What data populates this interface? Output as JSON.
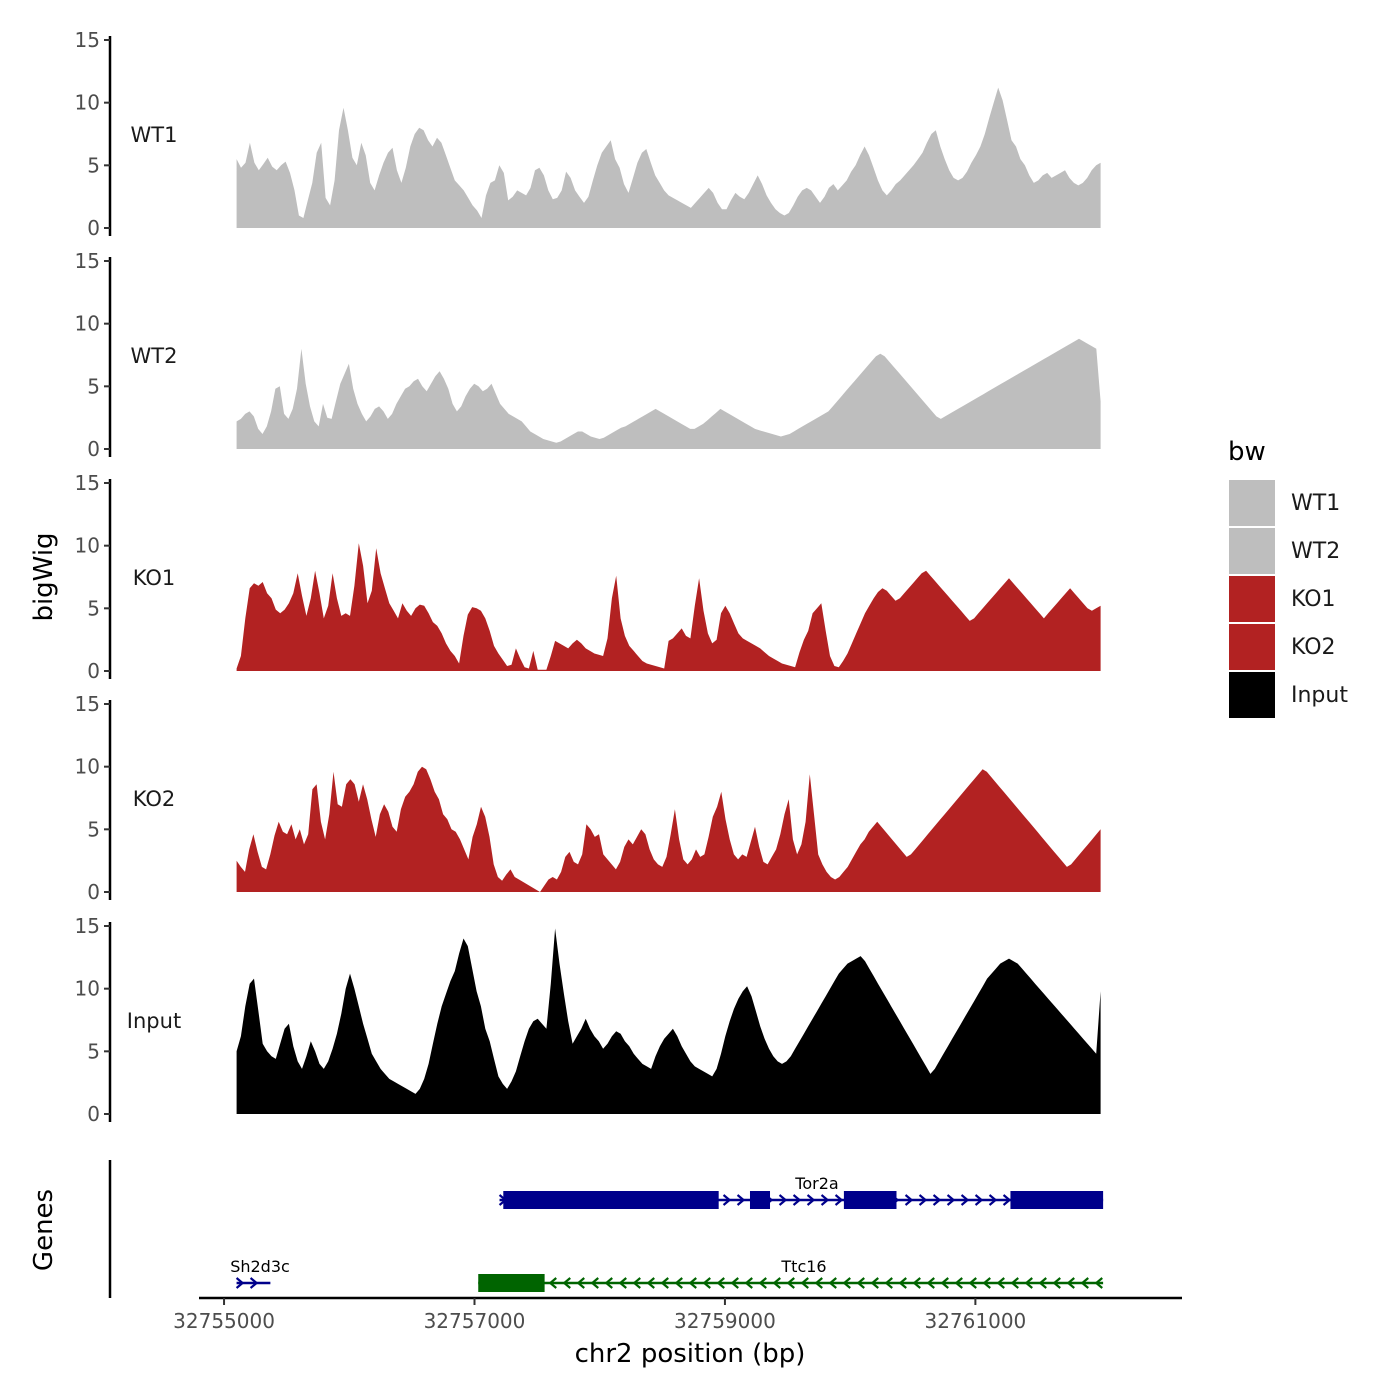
{
  "chart_data": {
    "type": "area",
    "ylabel": "bigWig",
    "gene_panel_label": "Genes",
    "xlabel": "chr2 position (bp)",
    "xlim": [
      32754800,
      32762650
    ],
    "x_ticks": [
      32755000,
      32757000,
      32759000,
      32761000
    ],
    "x_tick_labels": [
      "32755000",
      "32757000",
      "32759000",
      "32761000"
    ],
    "ylim": [
      0,
      15
    ],
    "y_ticks": [
      0,
      5,
      10,
      15
    ],
    "y_tick_labels": [
      "0",
      "5",
      "10",
      "15"
    ],
    "data_range": [
      32755100,
      32762000
    ],
    "legend": {
      "title": "bw",
      "entries": [
        {
          "label": "WT1",
          "color": "#bebebe"
        },
        {
          "label": "WT2",
          "color": "#bebebe"
        },
        {
          "label": "KO1",
          "color": "#b22222"
        },
        {
          "label": "KO2",
          "color": "#b22222"
        },
        {
          "label": "Input",
          "color": "#000000"
        }
      ]
    },
    "series": [
      {
        "name": "WT1",
        "color": "#bebebe",
        "values": [
          5.5,
          4.8,
          5.2,
          6.8,
          5.2,
          4.6,
          5.1,
          5.6,
          4.9,
          4.6,
          5.0,
          5.3,
          4.4,
          3.0,
          1.0,
          0.8,
          2.2,
          3.6,
          6.0,
          6.8,
          2.4,
          1.8,
          3.8,
          7.8,
          9.6,
          7.8,
          5.6,
          5.0,
          6.8,
          5.8,
          3.6,
          3.0,
          4.2,
          5.2,
          6.0,
          6.4,
          4.6,
          3.6,
          4.8,
          6.5,
          7.5,
          8.0,
          7.8,
          7.0,
          6.5,
          7.2,
          6.8,
          5.8,
          4.8,
          3.8,
          3.4,
          3.0,
          2.4,
          1.8,
          1.4,
          0.8,
          2.6,
          3.6,
          3.8,
          5.0,
          4.4,
          2.2,
          2.5,
          3.0,
          2.8,
          2.6,
          3.2,
          4.6,
          4.8,
          4.2,
          3.0,
          2.3,
          2.4,
          3.0,
          4.5,
          4.0,
          3.0,
          2.5,
          2.0,
          2.5,
          3.8,
          5.0,
          6.0,
          6.5,
          7.0,
          5.5,
          4.8,
          3.5,
          2.8,
          4.0,
          5.2,
          6.0,
          6.3,
          5.2,
          4.2,
          3.6,
          3.0,
          2.6,
          2.4,
          2.2,
          2.0,
          1.8,
          1.6,
          2.0,
          2.4,
          2.8,
          3.2,
          2.8,
          2.0,
          1.5,
          1.5,
          2.2,
          2.8,
          2.5,
          2.3,
          2.8,
          3.5,
          4.2,
          3.5,
          2.6,
          2.0,
          1.5,
          1.2,
          1.0,
          1.2,
          1.8,
          2.5,
          3.0,
          3.2,
          3.0,
          2.5,
          2.0,
          2.5,
          3.2,
          3.5,
          3.0,
          3.4,
          3.8,
          4.5,
          5.0,
          5.8,
          6.5,
          5.8,
          4.8,
          3.8,
          3.0,
          2.6,
          3.0,
          3.5,
          3.8,
          4.2,
          4.6,
          5.0,
          5.5,
          6.0,
          6.8,
          7.5,
          7.8,
          6.5,
          5.5,
          4.6,
          4.0,
          3.8,
          4.0,
          4.5,
          5.2,
          5.8,
          6.5,
          7.5,
          8.8,
          10.0,
          11.2,
          10.2,
          8.6,
          7.0,
          6.5,
          5.5,
          5.0,
          4.2,
          3.6,
          3.8,
          4.2,
          4.4,
          4.0,
          4.2,
          4.4,
          4.6,
          4.0,
          3.6,
          3.4,
          3.6,
          4.0,
          4.6,
          5.0,
          5.2
        ]
      },
      {
        "name": "WT2",
        "color": "#bebebe",
        "values": [
          2.2,
          2.4,
          2.8,
          3.0,
          2.6,
          1.6,
          1.2,
          1.8,
          3.0,
          4.8,
          5.0,
          2.8,
          2.4,
          3.2,
          4.8,
          8.0,
          5.2,
          3.4,
          2.2,
          1.8,
          3.6,
          2.5,
          2.4,
          3.8,
          5.2,
          6.0,
          6.8,
          4.8,
          3.6,
          2.8,
          2.2,
          2.6,
          3.2,
          3.4,
          3.0,
          2.4,
          2.8,
          3.6,
          4.2,
          4.8,
          5.0,
          5.4,
          5.6,
          5.0,
          4.6,
          5.2,
          5.8,
          6.2,
          5.6,
          4.8,
          3.6,
          3.0,
          3.4,
          4.2,
          4.8,
          5.2,
          5.0,
          4.6,
          4.8,
          5.2,
          4.4,
          3.6,
          3.2,
          2.8,
          2.6,
          2.4,
          2.2,
          1.8,
          1.4,
          1.2,
          1.0,
          0.8,
          0.7,
          0.6,
          0.5,
          0.6,
          0.8,
          1.0,
          1.2,
          1.4,
          1.4,
          1.2,
          1.0,
          0.9,
          0.8,
          0.9,
          1.1,
          1.3,
          1.5,
          1.7,
          1.8,
          2.0,
          2.2,
          2.4,
          2.6,
          2.8,
          3.0,
          3.2,
          3.0,
          2.8,
          2.6,
          2.4,
          2.2,
          2.0,
          1.8,
          1.6,
          1.6,
          1.8,
          2.0,
          2.3,
          2.6,
          2.9,
          3.2,
          3.0,
          2.8,
          2.6,
          2.4,
          2.2,
          2.0,
          1.8,
          1.6,
          1.5,
          1.4,
          1.3,
          1.2,
          1.1,
          1.0,
          1.1,
          1.2,
          1.4,
          1.6,
          1.8,
          2.0,
          2.2,
          2.4,
          2.6,
          2.8,
          3.0,
          3.4,
          3.8,
          4.2,
          4.6,
          5.0,
          5.4,
          5.8,
          6.2,
          6.6,
          7.0,
          7.4,
          7.6,
          7.4,
          7.0,
          6.6,
          6.2,
          5.8,
          5.4,
          5.0,
          4.6,
          4.2,
          3.8,
          3.4,
          3.0,
          2.6,
          2.4,
          2.6,
          2.8,
          3.0,
          3.2,
          3.4,
          3.6,
          3.8,
          4.0,
          4.2,
          4.4,
          4.6,
          4.8,
          5.0,
          5.2,
          5.4,
          5.6,
          5.8,
          6.0,
          6.2,
          6.4,
          6.6,
          6.8,
          7.0,
          7.2,
          7.4,
          7.6,
          7.8,
          8.0,
          8.2,
          8.4,
          8.6,
          8.8,
          8.6,
          8.4,
          8.2,
          8.0,
          3.8
        ]
      },
      {
        "name": "KO1",
        "color": "#b22222",
        "values": [
          0.2,
          1.2,
          4.2,
          6.6,
          7.0,
          6.8,
          7.1,
          6.2,
          5.8,
          4.9,
          4.6,
          4.9,
          5.4,
          6.2,
          7.8,
          6.0,
          4.4,
          5.8,
          8.0,
          6.2,
          4.2,
          5.2,
          7.8,
          5.8,
          4.4,
          4.6,
          4.4,
          6.8,
          10.2,
          8.4,
          5.4,
          6.4,
          9.8,
          7.8,
          6.6,
          5.4,
          4.8,
          4.2,
          5.4,
          4.8,
          4.4,
          5.0,
          5.3,
          5.2,
          4.6,
          3.9,
          3.6,
          3.0,
          2.2,
          1.6,
          1.2,
          0.6,
          2.8,
          4.5,
          5.1,
          5.0,
          4.8,
          4.2,
          3.2,
          2.0,
          1.4,
          0.9,
          0.4,
          0.5,
          1.8,
          1.0,
          0.3,
          0.2,
          1.6,
          0.1,
          0.1,
          0.1,
          1.2,
          2.4,
          2.2,
          2.0,
          1.8,
          2.2,
          2.5,
          2.2,
          1.8,
          1.6,
          1.4,
          1.3,
          1.2,
          2.6,
          5.8,
          7.6,
          4.2,
          2.8,
          2.0,
          1.6,
          1.2,
          0.8,
          0.6,
          0.5,
          0.4,
          0.3,
          0.2,
          2.4,
          2.6,
          3.0,
          3.4,
          2.8,
          2.6,
          5.2,
          7.4,
          4.8,
          3.0,
          2.2,
          2.5,
          4.6,
          5.2,
          4.6,
          3.8,
          3.0,
          2.6,
          2.4,
          2.2,
          2.0,
          1.8,
          1.5,
          1.2,
          1.0,
          0.8,
          0.6,
          0.5,
          0.4,
          0.3,
          1.5,
          2.5,
          3.2,
          4.6,
          5.0,
          5.4,
          3.2,
          1.2,
          0.4,
          0.3,
          0.8,
          1.4,
          2.2,
          3.0,
          3.8,
          4.6,
          5.2,
          5.8,
          6.3,
          6.6,
          6.4,
          6.0,
          5.6,
          5.8,
          6.2,
          6.6,
          7.0,
          7.4,
          7.8,
          8.0,
          7.6,
          7.2,
          6.8,
          6.4,
          6.0,
          5.6,
          5.2,
          4.8,
          4.4,
          4.0,
          4.2,
          4.6,
          5.0,
          5.4,
          5.8,
          6.2,
          6.6,
          7.0,
          7.4,
          7.0,
          6.6,
          6.2,
          5.8,
          5.4,
          5.0,
          4.6,
          4.2,
          4.6,
          5.0,
          5.4,
          5.8,
          6.2,
          6.6,
          6.2,
          5.8,
          5.4,
          5.0,
          4.8,
          5.0,
          5.2
        ]
      },
      {
        "name": "KO2",
        "color": "#b22222",
        "values": [
          2.5,
          2.0,
          1.6,
          3.4,
          4.6,
          3.2,
          2.0,
          1.8,
          3.0,
          4.5,
          5.6,
          4.8,
          4.6,
          5.4,
          4.2,
          5.0,
          3.8,
          4.6,
          8.2,
          8.6,
          5.6,
          4.2,
          6.2,
          9.6,
          7.0,
          6.8,
          8.6,
          9.0,
          8.6,
          7.2,
          8.6,
          7.4,
          5.8,
          4.4,
          6.2,
          7.0,
          6.4,
          5.2,
          4.8,
          6.6,
          7.6,
          8.0,
          8.6,
          9.6,
          10.0,
          9.8,
          9.0,
          8.0,
          7.4,
          6.2,
          5.8,
          5.0,
          4.8,
          4.2,
          3.4,
          2.6,
          4.4,
          5.4,
          6.8,
          6.0,
          4.4,
          2.2,
          1.2,
          0.9,
          1.4,
          1.8,
          1.2,
          1.0,
          0.8,
          0.6,
          0.4,
          0.2,
          0.0,
          0.5,
          1.0,
          1.2,
          1.0,
          1.6,
          2.8,
          3.2,
          2.4,
          2.2,
          3.0,
          5.4,
          5.0,
          4.4,
          4.6,
          3.0,
          2.6,
          2.2,
          1.8,
          2.4,
          3.6,
          4.2,
          3.8,
          4.4,
          5.0,
          4.6,
          3.4,
          2.6,
          2.2,
          2.0,
          2.8,
          4.6,
          6.6,
          4.2,
          2.6,
          2.2,
          2.6,
          3.4,
          2.8,
          3.0,
          4.4,
          6.0,
          6.8,
          8.0,
          5.8,
          4.2,
          3.0,
          2.6,
          3.0,
          2.8,
          4.0,
          5.2,
          3.6,
          2.4,
          2.2,
          2.8,
          3.4,
          4.6,
          6.2,
          7.4,
          4.2,
          3.0,
          3.8,
          5.6,
          9.4,
          6.2,
          3.0,
          2.2,
          1.6,
          1.2,
          1.0,
          1.2,
          1.6,
          2.0,
          2.6,
          3.2,
          3.8,
          4.2,
          4.8,
          5.2,
          5.6,
          5.2,
          4.8,
          4.4,
          4.0,
          3.6,
          3.2,
          2.8,
          3.0,
          3.4,
          3.8,
          4.2,
          4.6,
          5.0,
          5.4,
          5.8,
          6.2,
          6.6,
          7.0,
          7.4,
          7.8,
          8.2,
          8.6,
          9.0,
          9.4,
          9.8,
          9.6,
          9.2,
          8.8,
          8.4,
          8.0,
          7.6,
          7.2,
          6.8,
          6.4,
          6.0,
          5.6,
          5.2,
          4.8,
          4.4,
          4.0,
          3.6,
          3.2,
          2.8,
          2.4,
          2.0,
          2.2,
          2.6,
          3.0,
          3.4,
          3.8,
          4.2,
          4.6,
          5.0
        ]
      },
      {
        "name": "Input",
        "color": "#000000",
        "values": [
          5.0,
          6.2,
          8.6,
          10.4,
          10.8,
          8.2,
          5.6,
          5.0,
          4.6,
          4.4,
          5.6,
          6.8,
          7.2,
          5.4,
          4.2,
          3.6,
          4.6,
          5.8,
          5.0,
          4.0,
          3.6,
          4.2,
          5.2,
          6.4,
          8.0,
          10.0,
          11.2,
          10.0,
          8.6,
          7.2,
          6.0,
          4.8,
          4.2,
          3.6,
          3.2,
          2.8,
          2.6,
          2.4,
          2.2,
          2.0,
          1.8,
          1.6,
          2.0,
          2.8,
          4.0,
          5.6,
          7.2,
          8.6,
          9.6,
          10.6,
          11.4,
          12.8,
          14.0,
          13.4,
          11.6,
          9.8,
          8.6,
          6.8,
          5.8,
          4.4,
          3.0,
          2.4,
          2.0,
          2.6,
          3.4,
          4.6,
          5.8,
          6.8,
          7.4,
          7.6,
          7.2,
          6.8,
          10.4,
          14.8,
          12.0,
          9.6,
          7.4,
          5.6,
          6.2,
          6.8,
          7.6,
          6.8,
          6.2,
          5.8,
          5.2,
          5.6,
          6.2,
          6.6,
          6.4,
          5.8,
          5.4,
          4.8,
          4.4,
          4.0,
          3.8,
          3.6,
          4.6,
          5.4,
          6.0,
          6.4,
          6.8,
          6.2,
          5.4,
          4.8,
          4.2,
          3.8,
          3.6,
          3.4,
          3.2,
          3.0,
          3.6,
          4.8,
          6.2,
          7.4,
          8.4,
          9.2,
          9.8,
          10.2,
          9.4,
          8.2,
          7.0,
          6.0,
          5.2,
          4.6,
          4.2,
          4.0,
          4.2,
          4.6,
          5.2,
          5.8,
          6.4,
          7.0,
          7.6,
          8.2,
          8.8,
          9.4,
          10.0,
          10.6,
          11.2,
          11.6,
          12.0,
          12.2,
          12.4,
          12.6,
          12.2,
          11.6,
          11.0,
          10.4,
          9.8,
          9.2,
          8.6,
          8.0,
          7.4,
          6.8,
          6.2,
          5.6,
          5.0,
          4.4,
          3.8,
          3.2,
          3.6,
          4.2,
          4.8,
          5.4,
          6.0,
          6.6,
          7.2,
          7.8,
          8.4,
          9.0,
          9.6,
          10.2,
          10.8,
          11.2,
          11.6,
          12.0,
          12.2,
          12.4,
          12.2,
          12.0,
          11.6,
          11.2,
          10.8,
          10.4,
          10.0,
          9.6,
          9.2,
          8.8,
          8.4,
          8.0,
          7.6,
          7.2,
          6.8,
          6.4,
          6.0,
          5.6,
          5.2,
          4.8,
          9.8
        ]
      }
    ],
    "genes": [
      {
        "name": "Tor2a",
        "strand": "+",
        "color": "#00008b",
        "start": 32757200,
        "end": 32762020,
        "exons": [
          [
            32757230,
            32758950
          ],
          [
            32759200,
            32759360
          ],
          [
            32759950,
            32760370
          ],
          [
            32761280,
            32762020
          ]
        ]
      },
      {
        "name": "Sh2d3c",
        "strand": "+",
        "color": "#00008b",
        "start": 32755100,
        "end": 32755370,
        "exons": []
      },
      {
        "name": "Ttc16",
        "strand": "-",
        "color": "#006400",
        "start": 32757030,
        "end": 32762020,
        "exons": [
          [
            32757030,
            32757560
          ]
        ]
      }
    ]
  }
}
